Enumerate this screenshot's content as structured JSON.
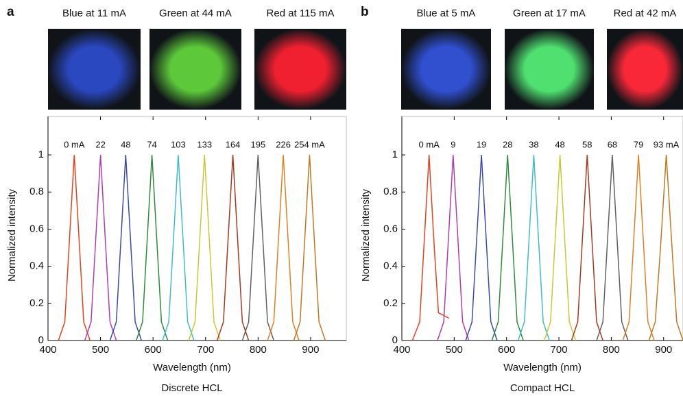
{
  "chart_data": [
    {
      "type": "line",
      "panel": "a",
      "images": [
        {
          "caption": "Blue at 11 mA",
          "color": "#2a48c0"
        },
        {
          "caption": "Green at 44 mA",
          "color": "#5cc83a"
        },
        {
          "caption": "Red at 115 mA",
          "color": "#f02030"
        }
      ],
      "xlabel": "Wavelength (nm)",
      "ylabel": "Normalized intensity",
      "caption": "Discrete HCL",
      "xlim": [
        400,
        968
      ],
      "ylim": [
        0,
        1.207
      ],
      "xticks": [
        400,
        500,
        600,
        700,
        800,
        900
      ],
      "yticks": [
        0,
        0.2,
        0.4,
        0.6,
        0.8,
        1
      ],
      "series": [
        {
          "name": "0 mA",
          "color": "#e8401c",
          "x": [
            420,
            432,
            440,
            450,
            460,
            468,
            480
          ],
          "values": [
            0,
            0.1,
            0.5,
            1,
            0.5,
            0.1,
            0
          ]
        },
        {
          "name": "22",
          "color": "#b03cb0",
          "x": [
            470,
            482,
            490,
            500,
            510,
            518,
            530
          ],
          "values": [
            0,
            0.1,
            0.5,
            1,
            0.5,
            0.1,
            0
          ]
        },
        {
          "name": "48",
          "color": "#3a4aa8",
          "x": [
            518,
            530,
            538,
            548,
            558,
            566,
            578
          ],
          "values": [
            0,
            0.1,
            0.5,
            1,
            0.5,
            0.1,
            0
          ]
        },
        {
          "name": "74",
          "color": "#2e8b3a",
          "x": [
            568,
            580,
            588,
            598,
            608,
            616,
            628
          ],
          "values": [
            0,
            0.1,
            0.5,
            1,
            0.5,
            0.1,
            0
          ]
        },
        {
          "name": "103",
          "color": "#3cbccc",
          "x": [
            618,
            630,
            638,
            648,
            658,
            666,
            678
          ],
          "values": [
            0,
            0.1,
            0.5,
            1,
            0.5,
            0.1,
            0
          ]
        },
        {
          "name": "133",
          "color": "#c8c830",
          "x": [
            668,
            680,
            688,
            698,
            708,
            716,
            728
          ],
          "values": [
            0,
            0.1,
            0.5,
            1,
            0.5,
            0.1,
            0
          ]
        },
        {
          "name": "164",
          "color": "#a83820",
          "x": [
            722,
            734,
            742,
            752,
            762,
            770,
            782
          ],
          "values": [
            0,
            0.1,
            0.5,
            1,
            0.5,
            0.1,
            0
          ]
        },
        {
          "name": "195",
          "color": "#606060",
          "x": [
            770,
            782,
            790,
            800,
            810,
            818,
            830
          ],
          "values": [
            0,
            0.1,
            0.5,
            1,
            0.5,
            0.1,
            0
          ]
        },
        {
          "name": "226",
          "color": "#e08020",
          "x": [
            818,
            830,
            838,
            848,
            858,
            866,
            878
          ],
          "values": [
            0,
            0.1,
            0.5,
            1,
            0.5,
            0.1,
            0
          ]
        },
        {
          "name": "254 mA",
          "color": "#c07820",
          "x": [
            868,
            880,
            888,
            898,
            908,
            916,
            928
          ],
          "values": [
            0,
            0.1,
            0.5,
            1,
            0.5,
            0.1,
            0
          ]
        }
      ]
    },
    {
      "type": "line",
      "panel": "b",
      "images": [
        {
          "caption": "Blue at 5 mA",
          "color": "#3050d0"
        },
        {
          "caption": "Green at 17 mA",
          "color": "#50e070"
        },
        {
          "caption": "Red at 42 mA",
          "color": "#f82838"
        }
      ],
      "xlabel": "Wavelength (nm)",
      "ylabel": "Normalized intensity",
      "caption": "Compact HCL",
      "xlim": [
        400,
        937
      ],
      "ylim": [
        0,
        1.207
      ],
      "xticks": [
        400,
        500,
        600,
        700,
        800,
        900
      ],
      "yticks": [
        0,
        0.2,
        0.4,
        0.6,
        0.8,
        1
      ],
      "series": [
        {
          "name": "0 mA",
          "color": "#e8401c",
          "x": [
            420,
            434,
            442,
            452,
            462,
            470,
            490
          ],
          "values": [
            0,
            0.1,
            0.5,
            1,
            0.5,
            0.15,
            0.12
          ]
        },
        {
          "name": "9",
          "color": "#b03cb0",
          "x": [
            468,
            480,
            488,
            498,
            508,
            516,
            528
          ],
          "values": [
            0,
            0.1,
            0.5,
            1,
            0.5,
            0.1,
            0
          ]
        },
        {
          "name": "19",
          "color": "#3a4aa8",
          "x": [
            522,
            534,
            542,
            552,
            562,
            570,
            582
          ],
          "values": [
            0,
            0.1,
            0.5,
            1,
            0.5,
            0.1,
            0
          ]
        },
        {
          "name": "28",
          "color": "#2e8b3a",
          "x": [
            572,
            584,
            592,
            602,
            612,
            620,
            632
          ],
          "values": [
            0,
            0.1,
            0.5,
            1,
            0.5,
            0.1,
            0
          ]
        },
        {
          "name": "38",
          "color": "#3cbccc",
          "x": [
            622,
            634,
            642,
            652,
            662,
            670,
            682
          ],
          "values": [
            0,
            0.1,
            0.5,
            1,
            0.5,
            0.1,
            0
          ]
        },
        {
          "name": "48",
          "color": "#c8c830",
          "x": [
            672,
            684,
            692,
            702,
            712,
            720,
            732
          ],
          "values": [
            0,
            0.1,
            0.5,
            1,
            0.5,
            0.1,
            0
          ]
        },
        {
          "name": "58",
          "color": "#a83820",
          "x": [
            724,
            736,
            744,
            754,
            764,
            772,
            784
          ],
          "values": [
            0,
            0.1,
            0.5,
            1,
            0.5,
            0.1,
            0
          ]
        },
        {
          "name": "68",
          "color": "#606060",
          "x": [
            772,
            784,
            792,
            802,
            812,
            820,
            832
          ],
          "values": [
            0,
            0.1,
            0.5,
            1,
            0.5,
            0.1,
            0
          ]
        },
        {
          "name": "79",
          "color": "#e08020",
          "x": [
            822,
            834,
            842,
            852,
            862,
            870,
            882
          ],
          "values": [
            0,
            0.1,
            0.5,
            1,
            0.5,
            0.1,
            0
          ]
        },
        {
          "name": "93 mA",
          "color": "#c07820",
          "x": [
            872,
            884,
            894,
            905,
            916,
            925,
            937
          ],
          "values": [
            0,
            0.1,
            0.5,
            1,
            0.5,
            0.1,
            0
          ]
        }
      ]
    }
  ]
}
